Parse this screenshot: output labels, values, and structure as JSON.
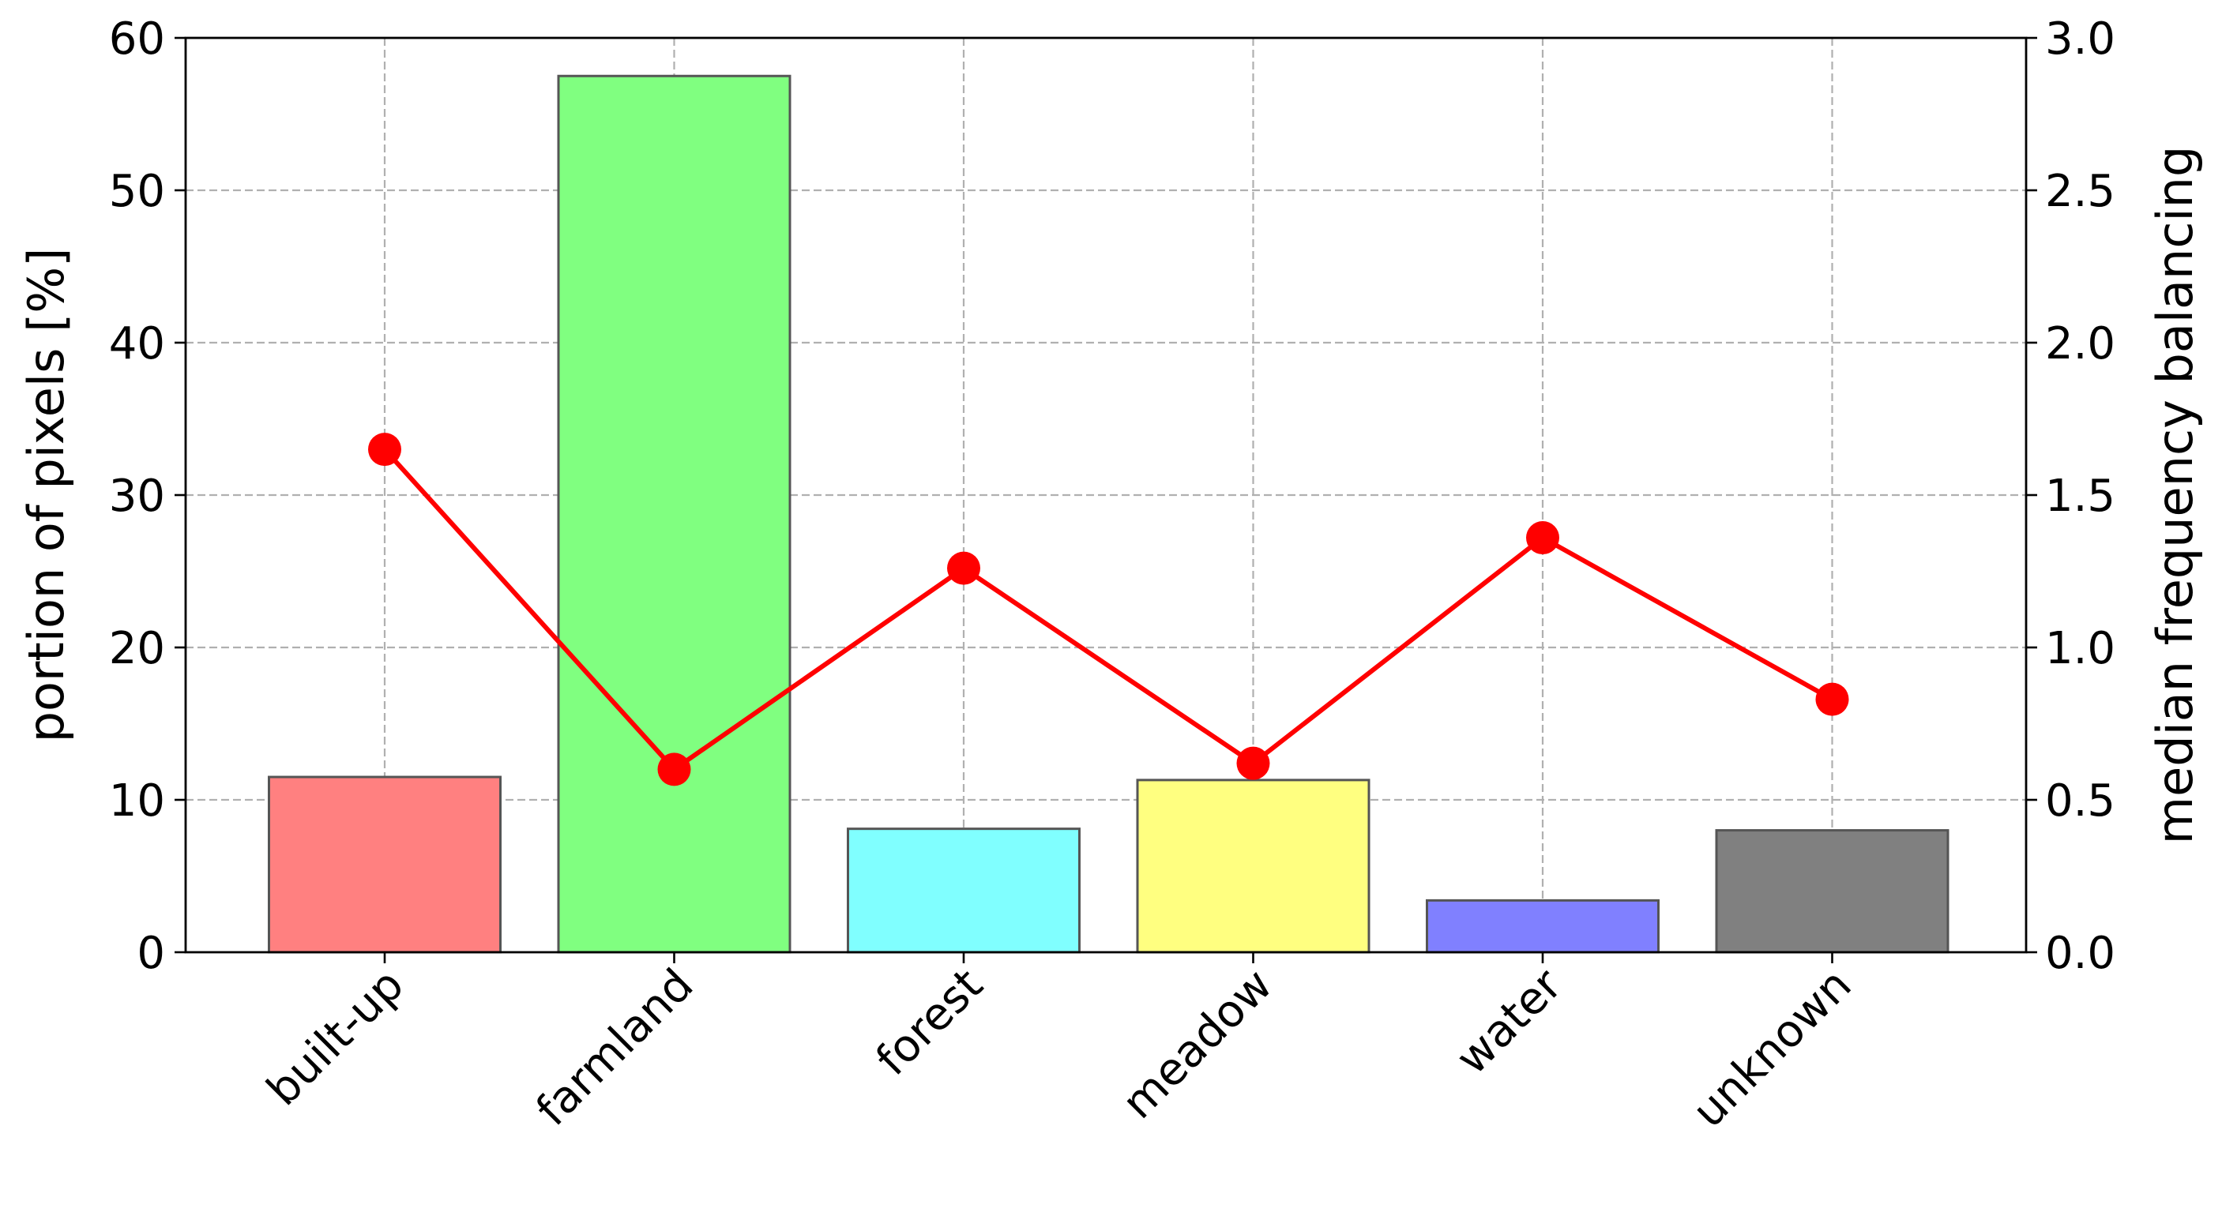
{
  "chart_data": {
    "type": "bar",
    "categories": [
      "built-up",
      "farmland",
      "forest",
      "meadow",
      "water",
      "unknown"
    ],
    "series": [
      {
        "type": "bar",
        "axis": "left",
        "values": [
          11.5,
          57.5,
          8.1,
          11.3,
          3.4,
          8.0
        ],
        "colors": [
          "#ff8080",
          "#80ff80",
          "#80ffff",
          "#ffff80",
          "#8080ff",
          "#808080"
        ],
        "edge_color": "#555555"
      },
      {
        "type": "line",
        "axis": "right",
        "values": [
          1.65,
          0.6,
          1.26,
          0.62,
          1.36,
          0.83
        ],
        "color": "#ff0000",
        "marker": "circle"
      }
    ],
    "ylabel": "portion of pixels [%]",
    "ylabel_right": "median frequency balancing",
    "xlabel": "",
    "ylim": [
      0,
      60
    ],
    "ylim_right": [
      0,
      3.0
    ],
    "yticks": [
      "0",
      "10",
      "20",
      "30",
      "40",
      "50",
      "60"
    ],
    "yticks_right": [
      "0.0",
      "0.5",
      "1.0",
      "1.5",
      "2.0",
      "2.5",
      "3.0"
    ],
    "grid": true,
    "xtick_rotation_deg": 45
  }
}
